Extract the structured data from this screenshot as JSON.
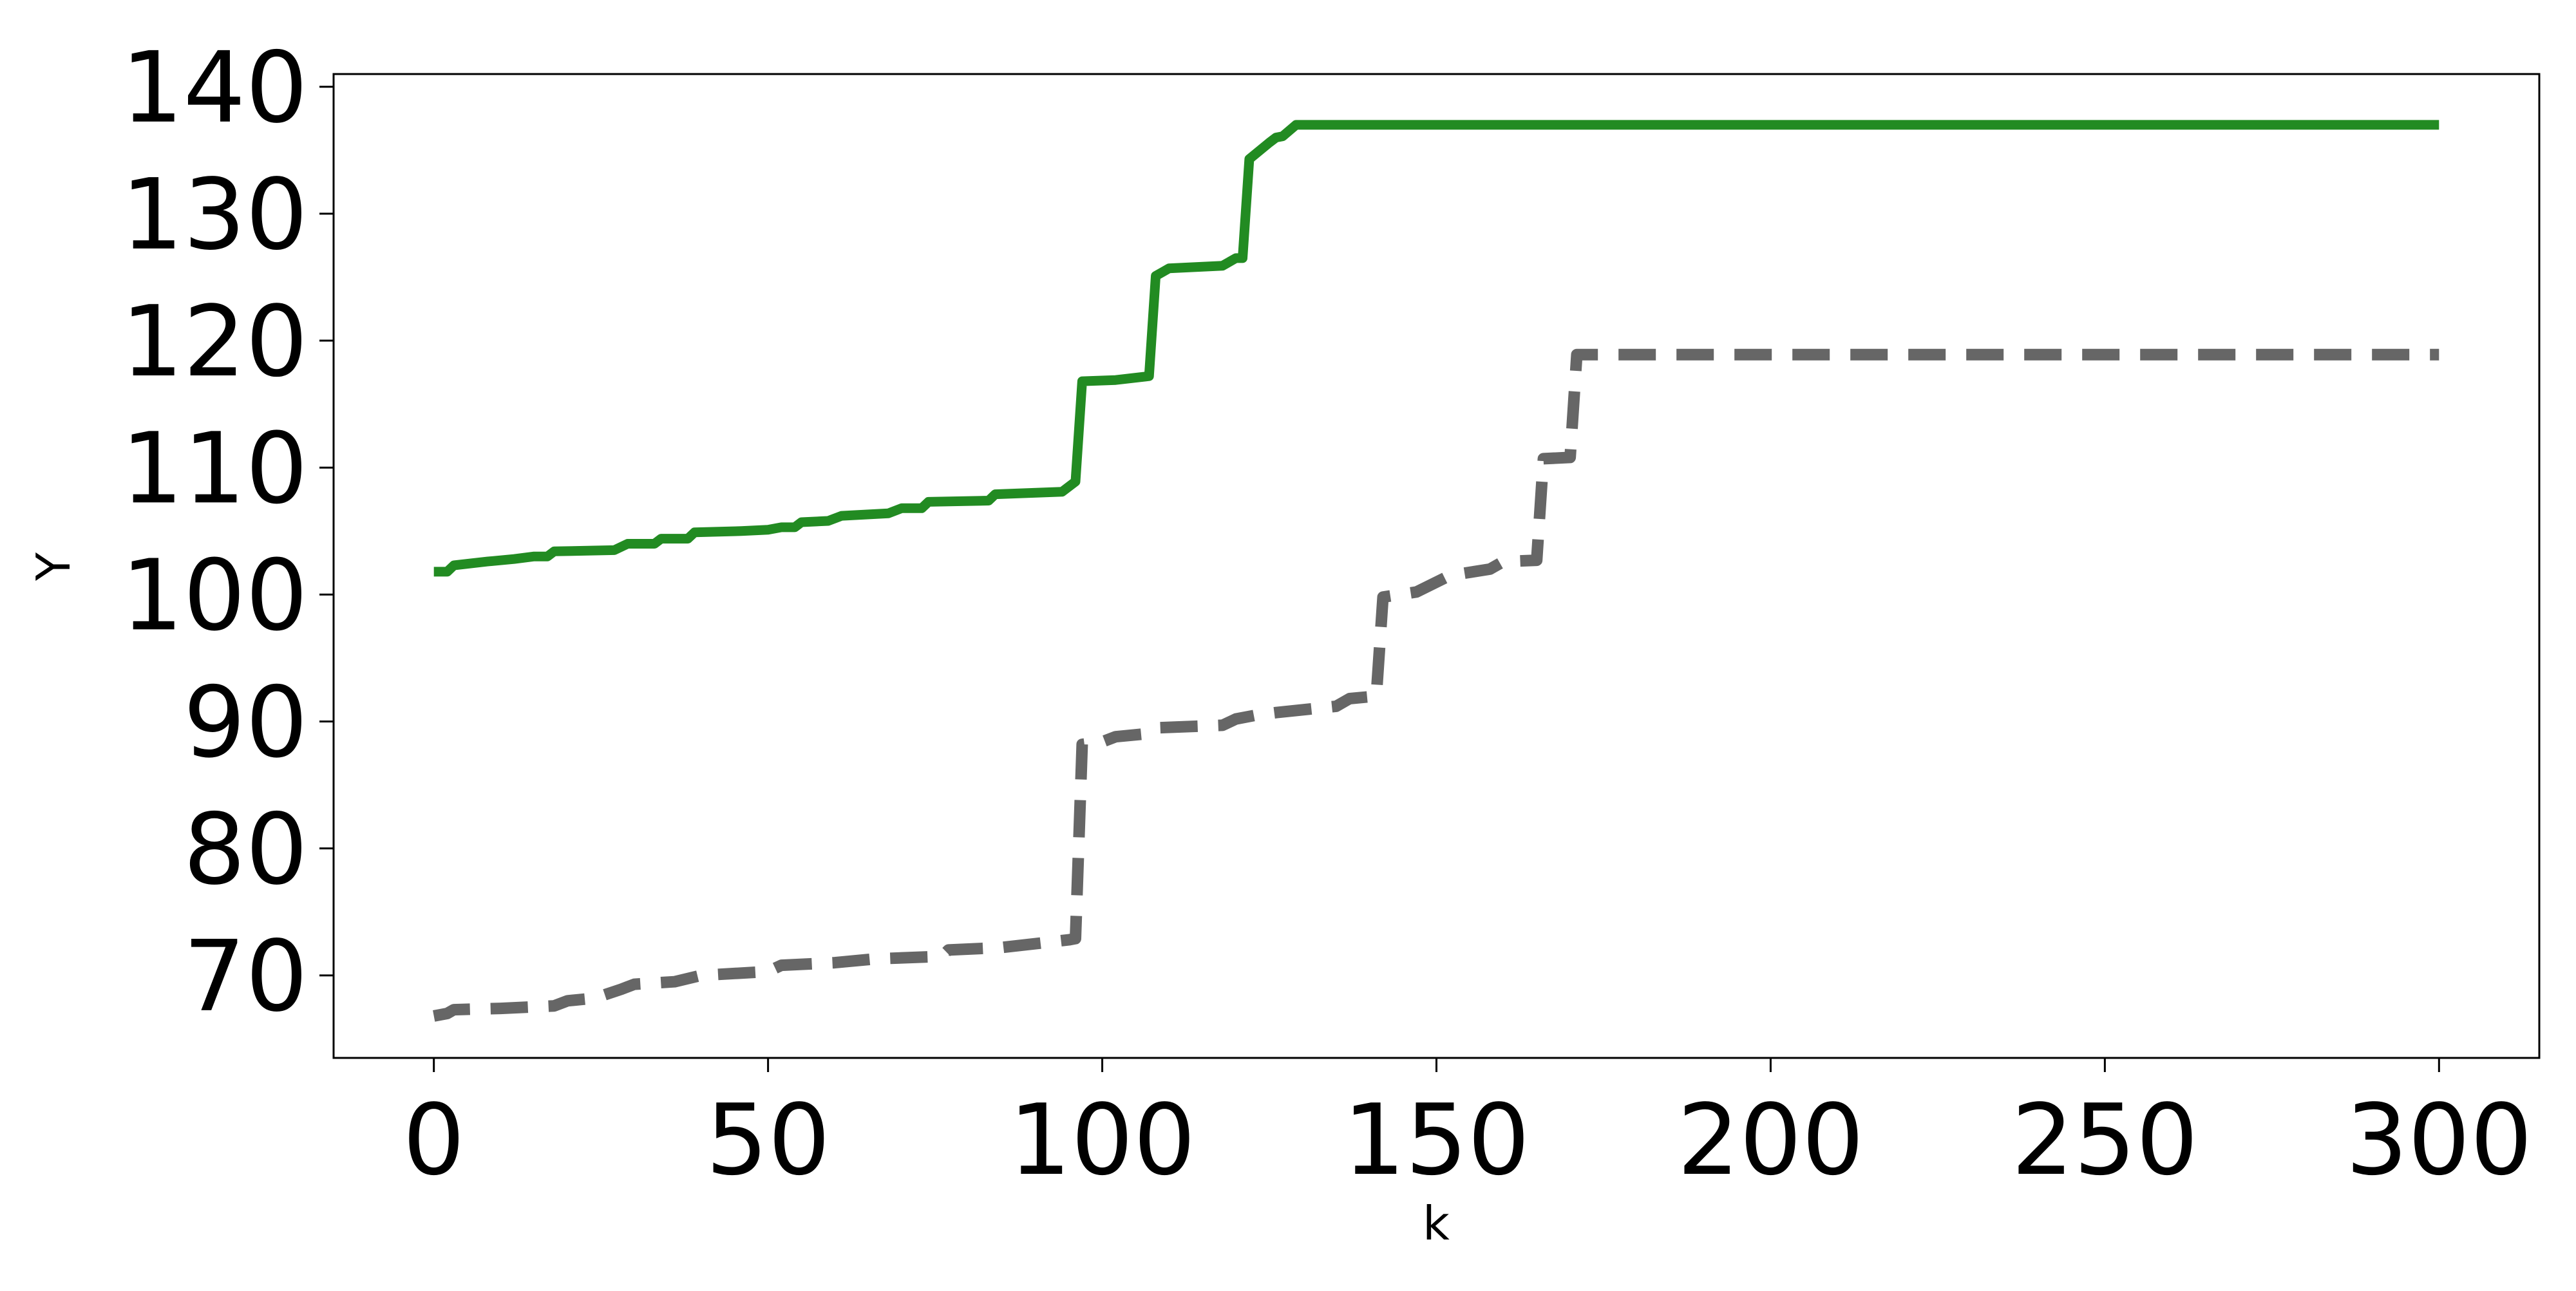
{
  "chart_data": {
    "type": "line",
    "title": "",
    "xlabel": "k",
    "ylabel": "Y",
    "xlim": [
      -15,
      315
    ],
    "ylim": [
      63.5,
      141
    ],
    "xticks": [
      0,
      50,
      100,
      150,
      200,
      250,
      300
    ],
    "yticks": [
      70,
      80,
      90,
      100,
      110,
      120,
      130,
      140
    ],
    "grid": false,
    "legend": "none",
    "series": [
      {
        "name": "solid-green",
        "color": "#228b22",
        "style": "solid",
        "points": [
          [
            0,
            101.8
          ],
          [
            2,
            101.8
          ],
          [
            3,
            102.3
          ],
          [
            8,
            102.6
          ],
          [
            12,
            102.8
          ],
          [
            15,
            103.0
          ],
          [
            17,
            103.0
          ],
          [
            18,
            103.4
          ],
          [
            27,
            103.5
          ],
          [
            29,
            104.0
          ],
          [
            33,
            104.0
          ],
          [
            34,
            104.4
          ],
          [
            38,
            104.4
          ],
          [
            39,
            104.9
          ],
          [
            46,
            105.0
          ],
          [
            50,
            105.1
          ],
          [
            52,
            105.3
          ],
          [
            54,
            105.3
          ],
          [
            55,
            105.7
          ],
          [
            59,
            105.8
          ],
          [
            61,
            106.2
          ],
          [
            68,
            106.4
          ],
          [
            70,
            106.8
          ],
          [
            73,
            106.8
          ],
          [
            74,
            107.3
          ],
          [
            83,
            107.4
          ],
          [
            84,
            107.9
          ],
          [
            94,
            108.1
          ],
          [
            96,
            108.9
          ],
          [
            97,
            116.8
          ],
          [
            102,
            116.9
          ],
          [
            107,
            117.2
          ],
          [
            108,
            125.1
          ],
          [
            109,
            125.4
          ],
          [
            110,
            125.7
          ],
          [
            118,
            125.9
          ],
          [
            120,
            126.5
          ],
          [
            121,
            126.5
          ],
          [
            122,
            134.3
          ],
          [
            125,
            135.6
          ],
          [
            126,
            136.0
          ],
          [
            127,
            136.1
          ],
          [
            129,
            137.0
          ],
          [
            300,
            137.0
          ]
        ]
      },
      {
        "name": "dashed-gray",
        "color": "#666666",
        "style": "dashed",
        "points": [
          [
            0,
            66.8
          ],
          [
            2,
            67.0
          ],
          [
            3,
            67.3
          ],
          [
            10,
            67.4
          ],
          [
            18,
            67.6
          ],
          [
            20,
            68.0
          ],
          [
            24,
            68.2
          ],
          [
            28,
            68.9
          ],
          [
            30,
            69.3
          ],
          [
            36,
            69.5
          ],
          [
            40,
            70.0
          ],
          [
            50,
            70.3
          ],
          [
            52,
            70.8
          ],
          [
            60,
            71.0
          ],
          [
            66,
            71.3
          ],
          [
            76,
            71.5
          ],
          [
            77,
            72.0
          ],
          [
            85,
            72.2
          ],
          [
            95,
            72.8
          ],
          [
            96,
            72.9
          ],
          [
            97,
            88.2
          ],
          [
            100,
            88.4
          ],
          [
            102,
            88.8
          ],
          [
            106,
            89.0
          ],
          [
            108,
            89.5
          ],
          [
            118,
            89.7
          ],
          [
            120,
            90.2
          ],
          [
            123,
            90.5
          ],
          [
            126,
            90.7
          ],
          [
            135,
            91.2
          ],
          [
            137,
            91.8
          ],
          [
            141,
            92.0
          ],
          [
            142,
            99.8
          ],
          [
            147,
            100.2
          ],
          [
            152,
            101.5
          ],
          [
            158,
            102.0
          ],
          [
            160,
            102.6
          ],
          [
            165,
            102.7
          ],
          [
            166,
            110.7
          ],
          [
            170,
            110.8
          ],
          [
            171,
            118.9
          ],
          [
            300,
            118.9
          ]
        ]
      }
    ]
  }
}
